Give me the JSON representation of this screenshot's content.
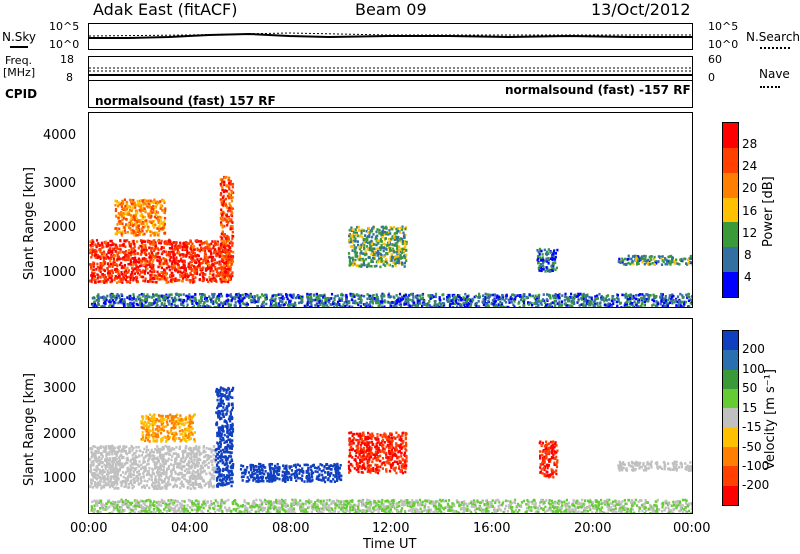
{
  "header": {
    "station": "Adak East (fitACF)",
    "beam": "Beam 09",
    "date": "13/Oct/2012"
  },
  "top_panels": {
    "nsky_label": "N.Sky",
    "nsky_ticks": [
      "10^5",
      "10^0"
    ],
    "nsearch_label": "N.Search",
    "nsearch_ticks": [
      "10^5",
      "10^0"
    ],
    "freq_label": "Freq.",
    "freq_unit": "[MHz]",
    "freq_ticks": [
      "18",
      "8"
    ],
    "nave_label": "Nave",
    "nave_ticks": [
      "60",
      "0"
    ],
    "cpid_label": "CPID",
    "cpid_left": "normalsound (fast) 157 RF",
    "cpid_right": "normalsound (fast) -157 RF"
  },
  "power_panel": {
    "ylabel": "Slant Range [km]",
    "yticks": [
      "4000",
      "3000",
      "2000",
      "1000"
    ],
    "cbar_label": "Power [dB]",
    "cbar_ticks": [
      "28",
      "24",
      "20",
      "16",
      "12",
      "8",
      "4"
    ],
    "cbar_colors": [
      "#ff0000",
      "#ff4000",
      "#ff8000",
      "#ffc000",
      "#3a9a3a",
      "#336fa0",
      "#0000ff"
    ]
  },
  "velocity_panel": {
    "ylabel": "Slant Range [km]",
    "yticks": [
      "4000",
      "3000",
      "2000",
      "1000"
    ],
    "cbar_label": "Velocity [m s⁻¹]",
    "cbar_ticks": [
      "200",
      "100",
      "50",
      "15",
      "-15",
      "-50",
      "-100",
      "-200"
    ],
    "cbar_colors": [
      "#1040c0",
      "#2a6fb0",
      "#3a9a3a",
      "#66cc33",
      "#c0c0c0",
      "#ffc000",
      "#ff8000",
      "#ff4000",
      "#ff0000"
    ]
  },
  "x_axis": {
    "label": "Time UT",
    "ticks": [
      "00:00",
      "04:00",
      "08:00",
      "12:00",
      "16:00",
      "20:00",
      "00:00"
    ]
  },
  "chart_data": [
    {
      "type": "heatmap",
      "title": "Power [dB]",
      "xlabel": "Time UT",
      "ylabel": "Slant Range [km]",
      "xlim_hours": [
        0,
        24
      ],
      "ylim_km": [
        180,
        4500
      ],
      "color_scale": {
        "label": "Power [dB]",
        "ticks": [
          4,
          8,
          12,
          16,
          20,
          24,
          28
        ]
      },
      "echo_regions": [
        {
          "t_start": 0.0,
          "t_end": 5.6,
          "r_low": 750,
          "r_high": 1700,
          "value": 28
        },
        {
          "t_start": 1.0,
          "t_end": 3.0,
          "r_low": 1800,
          "r_high": 2600,
          "value": 22
        },
        {
          "t_start": 5.2,
          "t_end": 5.7,
          "r_low": 800,
          "r_high": 3100,
          "value": 26
        },
        {
          "t_start": 10.3,
          "t_end": 12.6,
          "r_low": 1100,
          "r_high": 2000,
          "value": 14
        },
        {
          "t_start": 17.8,
          "t_end": 18.6,
          "r_low": 1000,
          "r_high": 1500,
          "value": 10
        },
        {
          "t_start": 21.0,
          "t_end": 24.0,
          "r_low": 1150,
          "r_high": 1350,
          "value": 12
        },
        {
          "t_start": 0.0,
          "t_end": 24.0,
          "r_low": 200,
          "r_high": 500,
          "value": 10
        }
      ]
    },
    {
      "type": "heatmap",
      "title": "Velocity [m s⁻¹]",
      "xlabel": "Time UT",
      "ylabel": "Slant Range [km]",
      "xlim_hours": [
        0,
        24
      ],
      "ylim_km": [
        180,
        4500
      ],
      "color_scale": {
        "label": "Velocity [m s⁻¹]",
        "ticks": [
          -200,
          -100,
          -50,
          -15,
          15,
          50,
          100,
          200
        ]
      },
      "echo_regions": [
        {
          "t_start": 0.0,
          "t_end": 5.0,
          "r_low": 750,
          "r_high": 1700,
          "value": 0
        },
        {
          "t_start": 2.0,
          "t_end": 4.2,
          "r_low": 1800,
          "r_high": 2400,
          "value": -50
        },
        {
          "t_start": 5.0,
          "t_end": 5.7,
          "r_low": 800,
          "r_high": 3000,
          "value": 200
        },
        {
          "t_start": 6.0,
          "t_end": 10.0,
          "r_low": 900,
          "r_high": 1300,
          "value": 200
        },
        {
          "t_start": 10.3,
          "t_end": 12.6,
          "r_low": 1100,
          "r_high": 2000,
          "value": -150
        },
        {
          "t_start": 17.9,
          "t_end": 18.6,
          "r_low": 1000,
          "r_high": 1800,
          "value": -150
        },
        {
          "t_start": 21.0,
          "t_end": 24.0,
          "r_low": 1150,
          "r_high": 1350,
          "value": 0
        },
        {
          "t_start": 0.0,
          "t_end": 24.0,
          "r_low": 200,
          "r_high": 500,
          "value": 15
        }
      ]
    }
  ]
}
